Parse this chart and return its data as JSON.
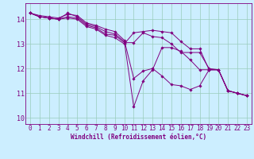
{
  "xlabel": "Windchill (Refroidissement éolien,°C)",
  "bg_color": "#cceeff",
  "line_color": "#800080",
  "grid_color": "#99ccbb",
  "spine_color": "#800080",
  "xlim": [
    -0.5,
    23.5
  ],
  "ylim": [
    9.75,
    14.65
  ],
  "xticks": [
    0,
    1,
    2,
    3,
    4,
    5,
    6,
    7,
    8,
    9,
    10,
    11,
    12,
    13,
    14,
    15,
    16,
    17,
    18,
    19,
    20,
    21,
    22,
    23
  ],
  "yticks": [
    10,
    11,
    12,
    13,
    14
  ],
  "series": [
    [
      14.25,
      14.15,
      14.1,
      14.05,
      14.2,
      14.15,
      13.85,
      13.75,
      13.6,
      13.5,
      13.15,
      11.6,
      11.9,
      12.0,
      11.7,
      11.35,
      11.3,
      11.15,
      11.3,
      11.95,
      11.95,
      11.1,
      11.0,
      10.9
    ],
    [
      14.25,
      14.1,
      14.05,
      14.0,
      14.25,
      14.1,
      13.8,
      13.7,
      13.5,
      13.4,
      13.1,
      10.45,
      11.5,
      11.95,
      12.85,
      12.85,
      12.7,
      12.35,
      11.95,
      11.95,
      11.95,
      11.1,
      11.0,
      10.9
    ],
    [
      14.25,
      14.1,
      14.05,
      14.0,
      14.1,
      14.05,
      13.75,
      13.65,
      13.4,
      13.35,
      13.05,
      13.05,
      13.45,
      13.3,
      13.25,
      13.0,
      12.65,
      12.65,
      12.65,
      12.0,
      11.95,
      11.1,
      11.0,
      10.9
    ],
    [
      14.25,
      14.1,
      14.05,
      14.0,
      14.05,
      14.0,
      13.7,
      13.6,
      13.35,
      13.25,
      13.0,
      13.45,
      13.5,
      13.55,
      13.5,
      13.45,
      13.1,
      12.8,
      12.8,
      11.95,
      11.95,
      11.1,
      11.0,
      10.9
    ]
  ],
  "tick_fontsize": 5.5,
  "xlabel_fontsize": 5.5
}
